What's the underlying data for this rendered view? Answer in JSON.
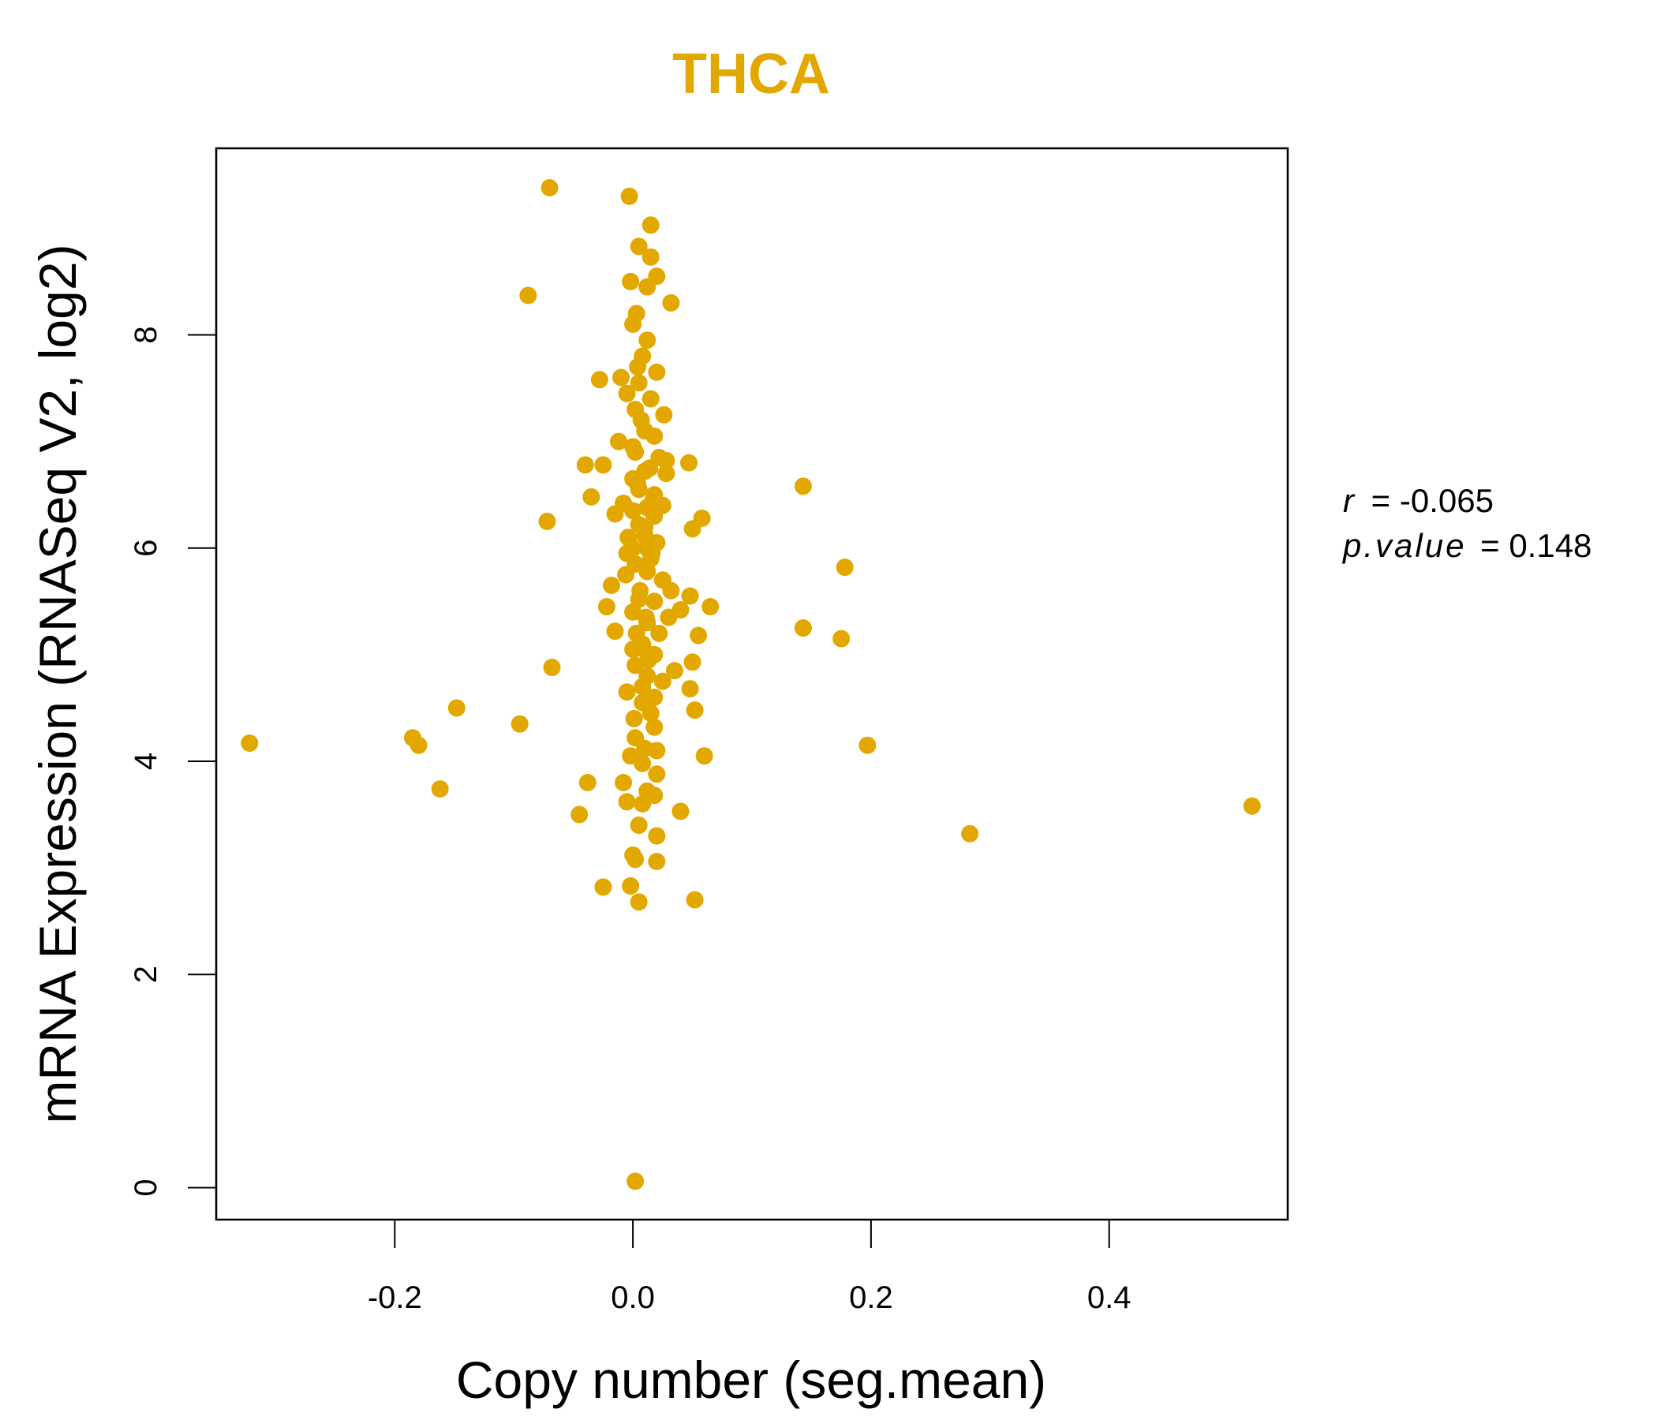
{
  "chart_data": {
    "type": "scatter",
    "title": "THCA",
    "xlabel": "Copy number (seg.mean)",
    "ylabel": "mRNA Expression (RNASeq V2, log2)",
    "xlim": [
      -0.35,
      0.55
    ],
    "ylim": [
      -0.3,
      9.75
    ],
    "xticks": [
      -0.2,
      0.0,
      0.2,
      0.4
    ],
    "xtick_labels": [
      "-0.2",
      "0.0",
      "0.2",
      "0.4"
    ],
    "yticks": [
      0,
      2,
      4,
      6,
      8
    ],
    "ytick_labels": [
      "0",
      "2",
      "4",
      "6",
      "8"
    ],
    "point_color": "#E3A800",
    "stats": {
      "r_label": "r",
      "r_value": "-0.065",
      "p_label": "p.value",
      "p_value": "0.148"
    },
    "points": [
      [
        -0.07,
        9.38
      ],
      [
        -0.003,
        9.3
      ],
      [
        0.015,
        9.03
      ],
      [
        0.005,
        8.83
      ],
      [
        0.015,
        8.73
      ],
      [
        0.02,
        8.55
      ],
      [
        -0.002,
        8.5
      ],
      [
        0.012,
        8.45
      ],
      [
        -0.088,
        8.37
      ],
      [
        0.032,
        8.3
      ],
      [
        0.003,
        8.2
      ],
      [
        0.0,
        8.1
      ],
      [
        0.012,
        7.95
      ],
      [
        0.008,
        7.8
      ],
      [
        0.02,
        7.65
      ],
      [
        -0.028,
        7.58
      ],
      [
        -0.01,
        7.6
      ],
      [
        0.005,
        7.55
      ],
      [
        -0.005,
        7.45
      ],
      [
        0.015,
        7.4
      ],
      [
        0.002,
        7.3
      ],
      [
        0.026,
        7.25
      ],
      [
        0.01,
        7.1
      ],
      [
        -0.012,
        7.0
      ],
      [
        0.018,
        7.05
      ],
      [
        0.002,
        6.9
      ],
      [
        0.022,
        6.85
      ],
      [
        -0.04,
        6.78
      ],
      [
        -0.025,
        6.78
      ],
      [
        0.028,
        6.82
      ],
      [
        0.047,
        6.8
      ],
      [
        0.01,
        6.72
      ],
      [
        0.0,
        6.65
      ],
      [
        0.028,
        6.7
      ],
      [
        0.143,
        6.58
      ],
      [
        0.005,
        6.55
      ],
      [
        -0.035,
        6.48
      ],
      [
        0.018,
        6.5
      ],
      [
        -0.008,
        6.42
      ],
      [
        0.012,
        6.38
      ],
      [
        0.025,
        6.4
      ],
      [
        0.0,
        6.35
      ],
      [
        -0.015,
        6.32
      ],
      [
        0.018,
        6.3
      ],
      [
        0.058,
        6.28
      ],
      [
        -0.072,
        6.25
      ],
      [
        0.005,
        6.22
      ],
      [
        0.05,
        6.18
      ],
      [
        0.01,
        6.12
      ],
      [
        0.02,
        6.05
      ],
      [
        0.0,
        6.0
      ],
      [
        -0.005,
        5.95
      ],
      [
        0.015,
        5.9
      ],
      [
        0.178,
        5.82
      ],
      [
        0.002,
        5.85
      ],
      [
        0.012,
        5.78
      ],
      [
        0.025,
        5.7
      ],
      [
        -0.018,
        5.65
      ],
      [
        0.032,
        5.6
      ],
      [
        0.048,
        5.55
      ],
      [
        0.005,
        5.52
      ],
      [
        0.018,
        5.5
      ],
      [
        0.065,
        5.45
      ],
      [
        -0.022,
        5.45
      ],
      [
        0.04,
        5.42
      ],
      [
        0.0,
        5.4
      ],
      [
        0.03,
        5.35
      ],
      [
        0.012,
        5.3
      ],
      [
        0.143,
        5.25
      ],
      [
        -0.015,
        5.22
      ],
      [
        0.022,
        5.2
      ],
      [
        0.055,
        5.18
      ],
      [
        0.175,
        5.15
      ],
      [
        0.008,
        5.1
      ],
      [
        0.0,
        5.05
      ],
      [
        0.018,
        5.0
      ],
      [
        0.05,
        4.93
      ],
      [
        0.002,
        4.9
      ],
      [
        -0.068,
        4.88
      ],
      [
        0.035,
        4.85
      ],
      [
        0.012,
        4.8
      ],
      [
        0.025,
        4.75
      ],
      [
        0.048,
        4.68
      ],
      [
        -0.005,
        4.65
      ],
      [
        0.018,
        4.6
      ],
      [
        0.008,
        4.55
      ],
      [
        -0.148,
        4.5
      ],
      [
        0.052,
        4.48
      ],
      [
        0.015,
        4.45
      ],
      [
        -0.095,
        4.35
      ],
      [
        0.018,
        4.32
      ],
      [
        0.002,
        4.22
      ],
      [
        -0.185,
        4.22
      ],
      [
        -0.322,
        4.17
      ],
      [
        -0.18,
        4.15
      ],
      [
        0.197,
        4.15
      ],
      [
        0.01,
        4.12
      ],
      [
        0.02,
        4.1
      ],
      [
        0.06,
        4.05
      ],
      [
        -0.002,
        4.05
      ],
      [
        0.008,
        3.98
      ],
      [
        0.02,
        3.88
      ],
      [
        -0.038,
        3.8
      ],
      [
        -0.008,
        3.8
      ],
      [
        -0.162,
        3.74
      ],
      [
        0.012,
        3.72
      ],
      [
        0.018,
        3.68
      ],
      [
        -0.005,
        3.62
      ],
      [
        0.008,
        3.6
      ],
      [
        0.52,
        3.58
      ],
      [
        0.04,
        3.53
      ],
      [
        -0.045,
        3.5
      ],
      [
        0.005,
        3.4
      ],
      [
        0.283,
        3.32
      ],
      [
        0.02,
        3.3
      ],
      [
        0.0,
        3.12
      ],
      [
        0.002,
        3.08
      ],
      [
        0.02,
        3.06
      ],
      [
        -0.025,
        2.82
      ],
      [
        -0.002,
        2.83
      ],
      [
        0.052,
        2.7
      ],
      [
        0.005,
        2.68
      ],
      [
        0.002,
        0.06
      ],
      [
        0.0,
        6.95
      ],
      [
        0.004,
        6.6
      ],
      [
        0.01,
        6.2
      ],
      [
        0.006,
        5.6
      ],
      [
        0.003,
        5.2
      ],
      [
        0.008,
        4.7
      ],
      [
        0.001,
        4.4
      ],
      [
        0.014,
        6.75
      ],
      [
        0.016,
        5.95
      ],
      [
        0.011,
        5.35
      ],
      [
        0.007,
        7.2
      ],
      [
        0.013,
        4.95
      ],
      [
        -0.004,
        6.1
      ],
      [
        -0.006,
        5.75
      ],
      [
        0.017,
        6.45
      ],
      [
        0.009,
        5.05
      ],
      [
        0.004,
        7.7
      ],
      [
        0.012,
        6.0
      ]
    ]
  }
}
